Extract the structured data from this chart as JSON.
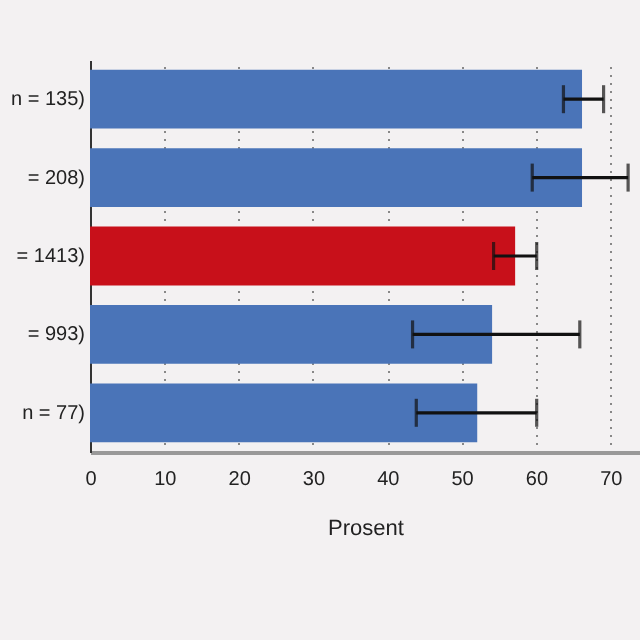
{
  "chart_data": {
    "type": "bar",
    "orientation": "horizontal",
    "xlabel": "Prosent",
    "categories": [
      "n = 135)",
      "= 208)",
      "= 1413)",
      "= 993)",
      "n = 77)"
    ],
    "values": [
      66.2,
      66.2,
      57.2,
      54.1,
      52.1
    ],
    "colors": [
      "#4a74b8",
      "#4a74b8",
      "#c8101a",
      "#4a74b8",
      "#4a74b8"
    ],
    "errors": [
      [
        63.7,
        69.1
      ],
      [
        59.5,
        72.4
      ],
      [
        54.3,
        60.1
      ],
      [
        43.4,
        65.9
      ],
      [
        43.9,
        60.1
      ]
    ],
    "xlim": [
      0,
      74
    ],
    "xticks": [
      0,
      10,
      20,
      30,
      40,
      50,
      60,
      70
    ],
    "grid": "x"
  }
}
